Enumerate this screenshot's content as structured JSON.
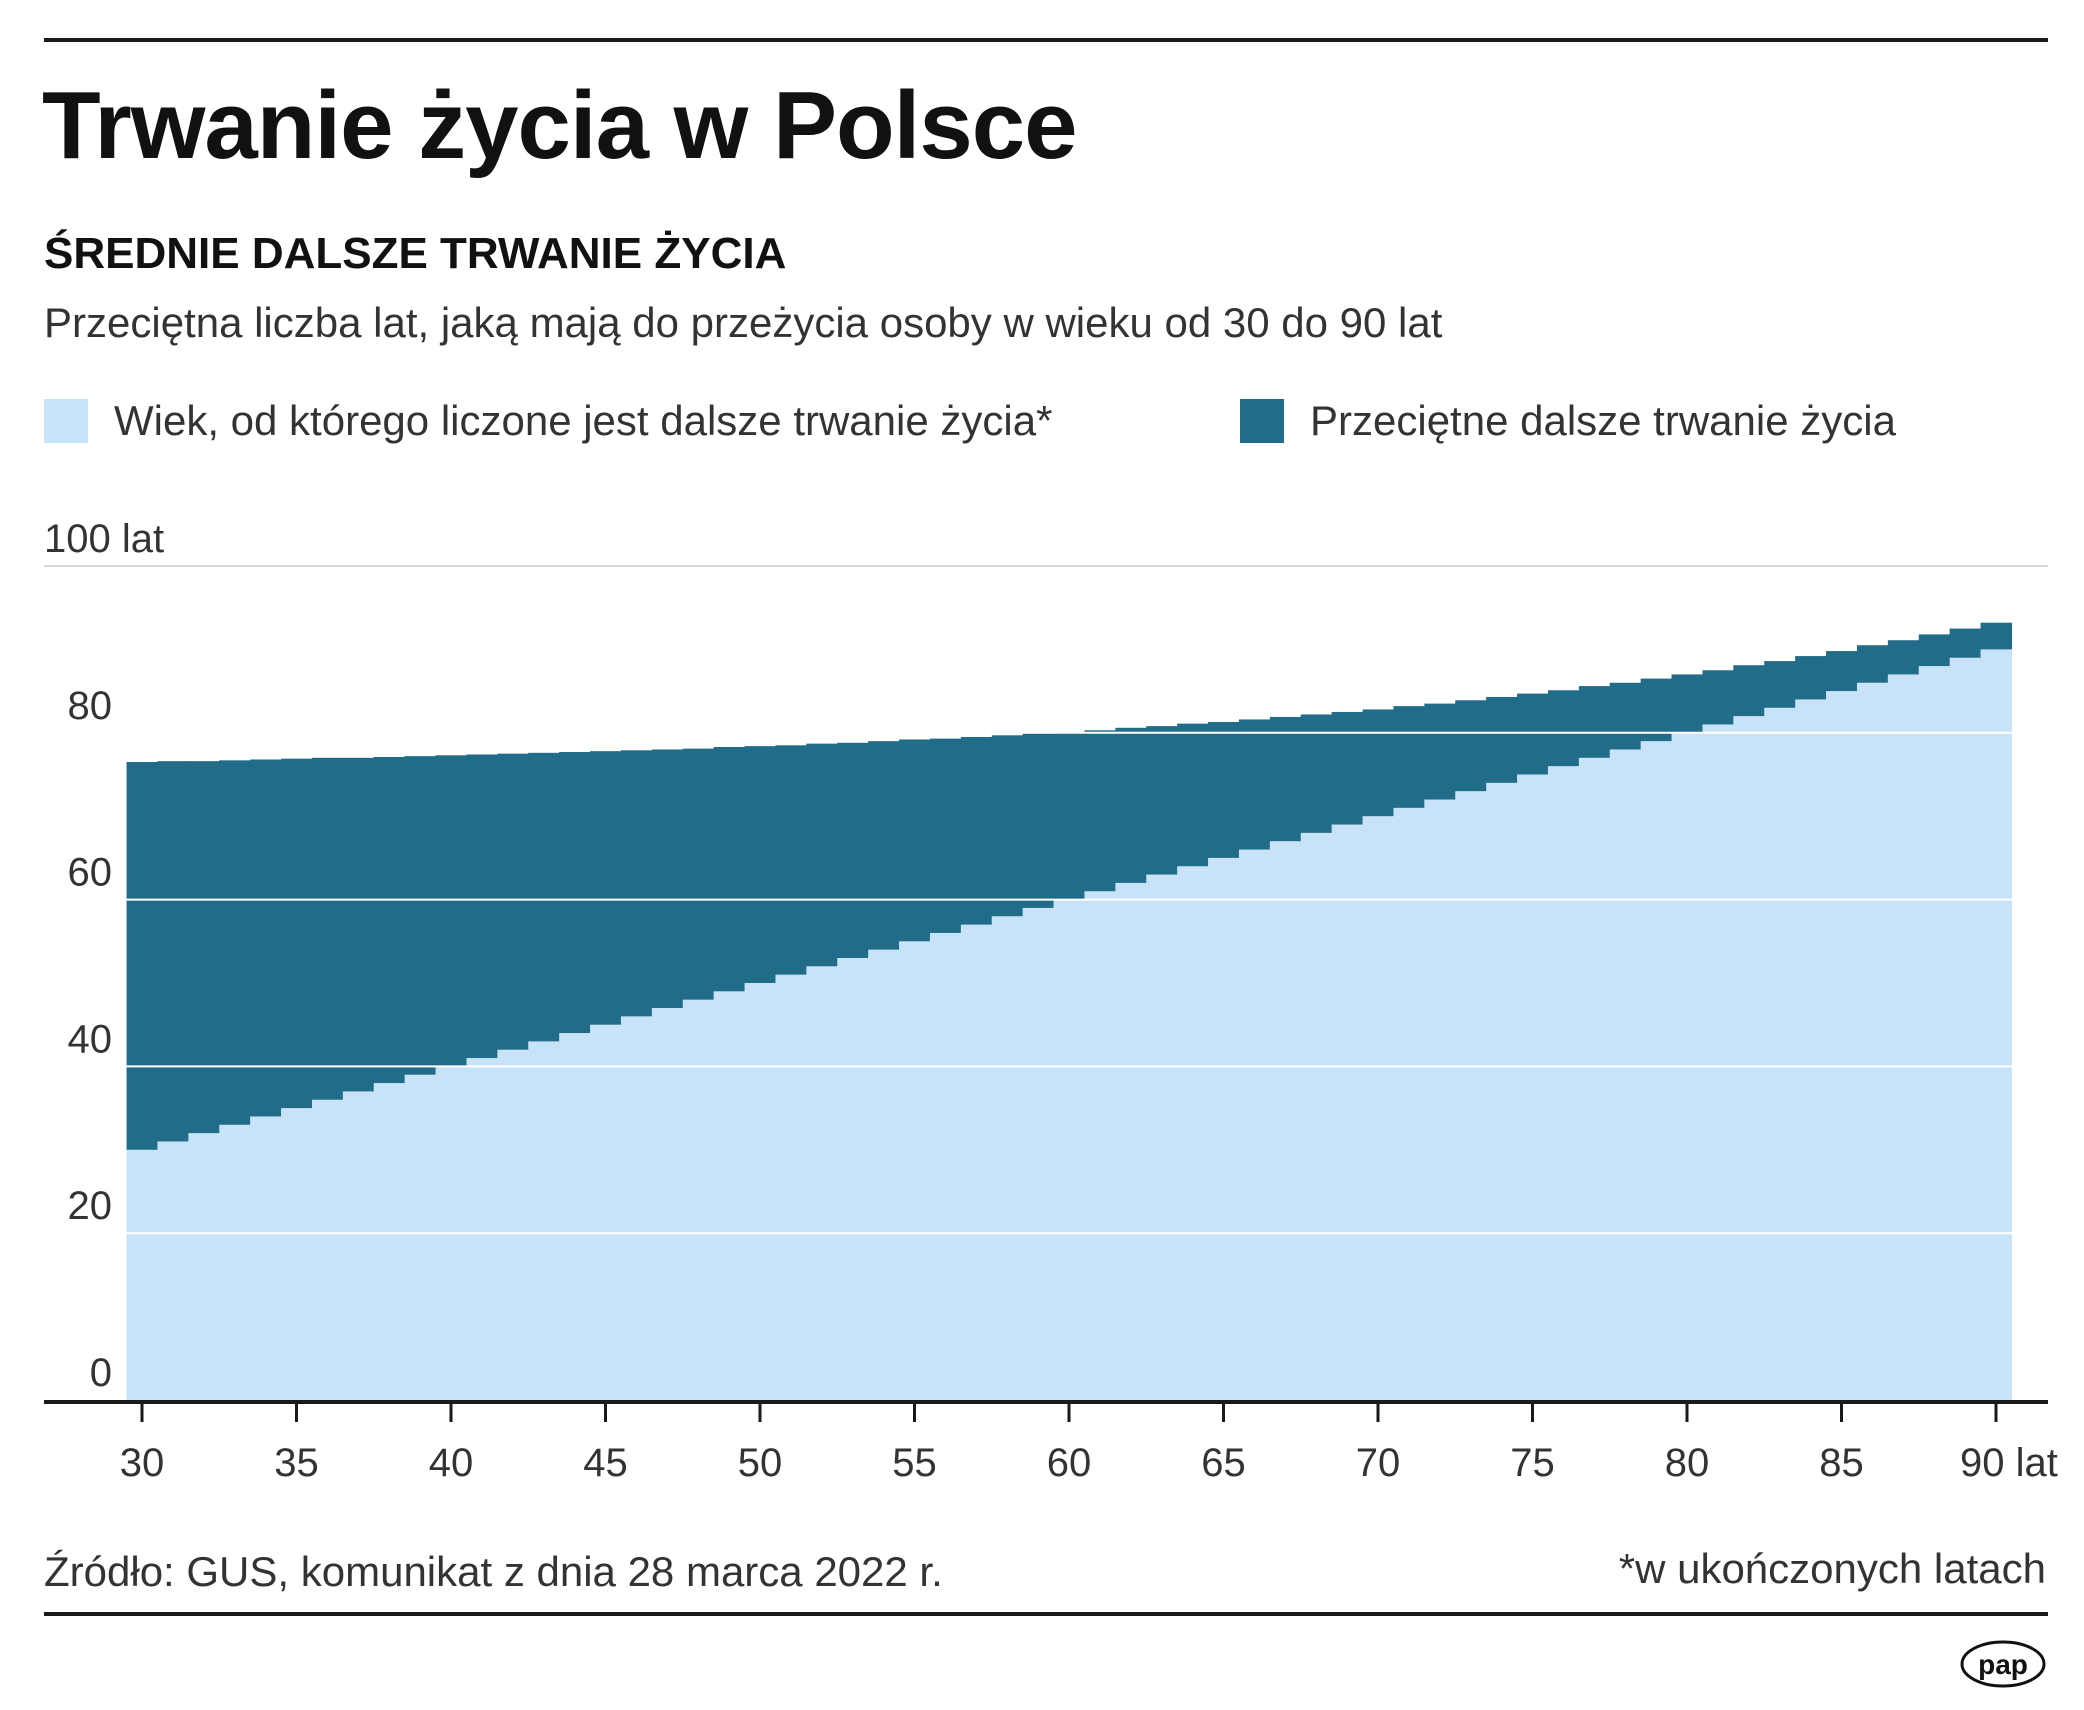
{
  "title": "Trwanie życia w Polsce",
  "subtitle": "ŚREDNIE DALSZE TRWANIE ŻYCIA",
  "description": "Przeciętna liczba lat, jaką mają do przeżycia osoby w wieku od 30 do 90 lat",
  "legend": {
    "age": {
      "label": "Wiek, od którego liczone jest dalsze trwanie życia*",
      "color": "#c8e2f7"
    },
    "expectancy": {
      "label": "Przeciętne dalsze trwanie życia",
      "color": "#216c88"
    }
  },
  "source": "Źródło: GUS, komunikat z dnia  28  marca 2022 r.",
  "footnote": "*w ukończonych latach",
  "logo": "pap",
  "colors": {
    "gridline": "#ffffff",
    "axis": "#1a1a1a",
    "text": "#333333"
  },
  "chart_data": {
    "type": "bar",
    "stacked": true,
    "x_tick_labels": [
      "30",
      "35",
      "40",
      "45",
      "50",
      "55",
      "60",
      "65",
      "70",
      "75",
      "80",
      "85",
      "90 lat"
    ],
    "y_tick_labels": [
      "0",
      "20",
      "40",
      "60",
      "80",
      "100 lat"
    ],
    "ylim": [
      0,
      100
    ],
    "grid": true,
    "legend_position": "top",
    "categories": [
      30,
      31,
      32,
      33,
      34,
      35,
      36,
      37,
      38,
      39,
      40,
      41,
      42,
      43,
      44,
      45,
      46,
      47,
      48,
      49,
      50,
      51,
      52,
      53,
      54,
      55,
      56,
      57,
      58,
      59,
      60,
      61,
      62,
      63,
      64,
      65,
      66,
      67,
      68,
      69,
      70,
      71,
      72,
      73,
      74,
      75,
      76,
      77,
      78,
      79,
      80,
      81,
      82,
      83,
      84,
      85,
      86,
      87,
      88,
      89,
      90
    ],
    "series": [
      {
        "name": "Wiek, od którego liczone jest dalsze trwanie życia*",
        "values": [
          30,
          31,
          32,
          33,
          34,
          35,
          36,
          37,
          38,
          39,
          40,
          41,
          42,
          43,
          44,
          45,
          46,
          47,
          48,
          49,
          50,
          51,
          52,
          53,
          54,
          55,
          56,
          57,
          58,
          59,
          60,
          61,
          62,
          63,
          64,
          65,
          66,
          67,
          68,
          69,
          70,
          71,
          72,
          73,
          74,
          75,
          76,
          77,
          78,
          79,
          80,
          81,
          82,
          83,
          84,
          85,
          86,
          87,
          88,
          89,
          90
        ]
      },
      {
        "name": "Przeciętne dalsze trwanie życia",
        "values": [
          46.5,
          45.6,
          44.6,
          43.7,
          42.8,
          41.9,
          41.0,
          40.0,
          39.1,
          38.2,
          37.3,
          36.4,
          35.5,
          34.6,
          33.7,
          32.8,
          31.9,
          31.0,
          30.1,
          29.3,
          28.4,
          27.5,
          26.7,
          25.8,
          25.0,
          24.2,
          23.3,
          22.5,
          21.7,
          20.9,
          20.1,
          19.3,
          18.6,
          17.8,
          17.1,
          16.3,
          15.6,
          14.9,
          14.2,
          13.5,
          12.8,
          12.2,
          11.5,
          10.9,
          10.3,
          9.7,
          9.1,
          8.6,
          8.0,
          7.5,
          7.0,
          6.5,
          6.1,
          5.6,
          5.2,
          4.8,
          4.5,
          4.1,
          3.8,
          3.5,
          3.2
        ]
      }
    ]
  }
}
